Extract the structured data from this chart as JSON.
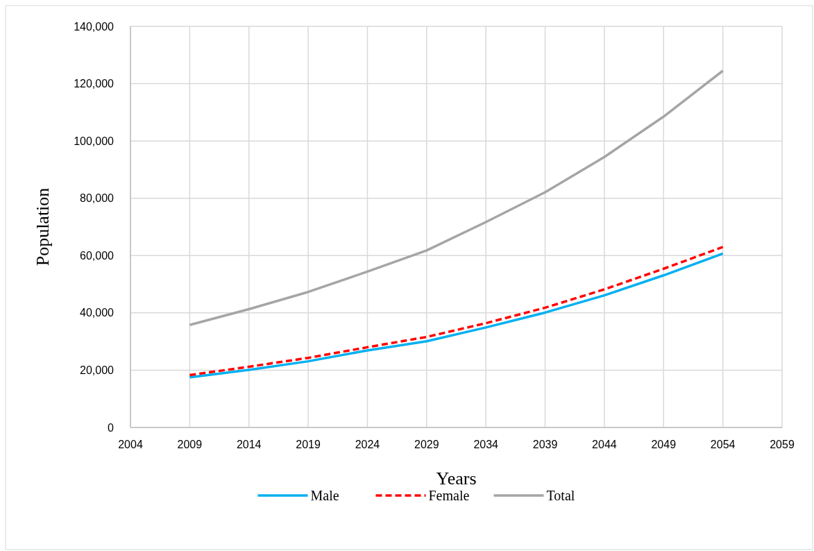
{
  "chart_data": {
    "type": "line",
    "xlabel": "Years",
    "ylabel": "Population",
    "x": [
      2009,
      2014,
      2019,
      2024,
      2029,
      2034,
      2039,
      2044,
      2049,
      2054
    ],
    "series": [
      {
        "name": "Male",
        "color": "#00b0f0",
        "line_style": "solid",
        "values": [
          17500,
          20100,
          23100,
          26900,
          30100,
          34900,
          40100,
          46100,
          53100,
          60700
        ]
      },
      {
        "name": "Female",
        "color": "#ff0000",
        "line_style": "dashed",
        "values": [
          18300,
          21200,
          24300,
          28000,
          31600,
          36400,
          41800,
          48200,
          55400,
          63000
        ]
      },
      {
        "name": "Total",
        "color": "#a5a5a5",
        "line_style": "solid",
        "values": [
          35800,
          41300,
          47300,
          54400,
          61800,
          71700,
          82100,
          94400,
          108500,
          124500
        ]
      }
    ],
    "xlim": [
      2004,
      2059
    ],
    "xticks": [
      2004,
      2009,
      2014,
      2019,
      2024,
      2029,
      2034,
      2039,
      2044,
      2049,
      2054,
      2059
    ],
    "ylim": [
      0,
      140000
    ],
    "yticks": [
      {
        "value": 0,
        "label": "0"
      },
      {
        "value": 20000,
        "label": "20,000"
      },
      {
        "value": 40000,
        "label": "40,000"
      },
      {
        "value": 60000,
        "label": "60,000"
      },
      {
        "value": 80000,
        "label": "80,000"
      },
      {
        "value": 100000,
        "label": "100,000"
      },
      {
        "value": 120000,
        "label": "120,000"
      },
      {
        "value": 140000,
        "label": "140,000"
      }
    ],
    "grid": true,
    "legend": "bottom"
  }
}
